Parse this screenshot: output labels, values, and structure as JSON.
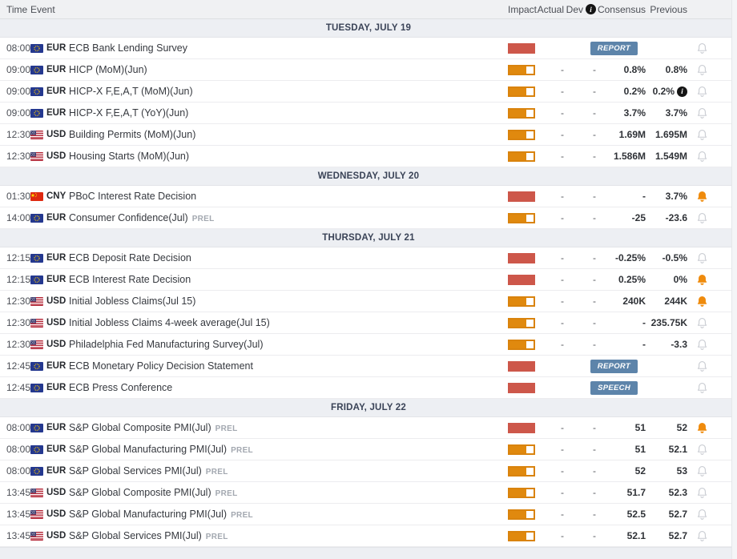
{
  "columns": {
    "time": "Time",
    "event": "Event",
    "impact": "Impact",
    "actual": "Actual",
    "dev": "Dev",
    "consensus": "Consensus",
    "previous": "Previous"
  },
  "labels": {
    "prel": "PREL",
    "info": "i"
  },
  "colors": {
    "impact_high": "#cd574a",
    "impact_medium": "#e0890e",
    "badge": "#5d84aa",
    "bell_active": "#ef8b0d",
    "bell_inactive": "#c9ccd2",
    "date_row_bg": "#edeff3",
    "header_bg": "#f0f1f3"
  },
  "sections": [
    {
      "date": "TUESDAY, JULY 19",
      "rows": [
        {
          "time": "08:00",
          "currency": "EUR",
          "flag": "eu",
          "event": "ECB Bank Lending Survey",
          "impact": "high",
          "actual": "",
          "dev": "",
          "consensus": "",
          "consensus_badge": "REPORT",
          "previous": "",
          "bell": "inactive"
        },
        {
          "time": "09:00",
          "currency": "EUR",
          "flag": "eu",
          "event": "HICP (MoM)(Jun)",
          "impact": "medium",
          "actual": "-",
          "dev": "-",
          "consensus": "0.8%",
          "previous": "0.8%",
          "bell": "inactive"
        },
        {
          "time": "09:00",
          "currency": "EUR",
          "flag": "eu",
          "event": "HICP-X F,E,A,T (MoM)(Jun)",
          "impact": "medium",
          "actual": "-",
          "dev": "-",
          "consensus": "0.2%",
          "previous": "0.2%",
          "previous_info": true,
          "bell": "inactive"
        },
        {
          "time": "09:00",
          "currency": "EUR",
          "flag": "eu",
          "event": "HICP-X F,E,A,T (YoY)(Jun)",
          "impact": "medium",
          "actual": "-",
          "dev": "-",
          "consensus": "3.7%",
          "previous": "3.7%",
          "bell": "inactive"
        },
        {
          "time": "12:30",
          "currency": "USD",
          "flag": "us",
          "event": "Building Permits (MoM)(Jun)",
          "impact": "medium",
          "actual": "-",
          "dev": "-",
          "consensus": "1.69M",
          "previous": "1.695M",
          "bell": "inactive"
        },
        {
          "time": "12:30",
          "currency": "USD",
          "flag": "us",
          "event": "Housing Starts (MoM)(Jun)",
          "impact": "medium",
          "actual": "-",
          "dev": "-",
          "consensus": "1.586M",
          "previous": "1.549M",
          "bell": "inactive"
        }
      ]
    },
    {
      "date": "WEDNESDAY, JULY 20",
      "rows": [
        {
          "time": "01:30",
          "currency": "CNY",
          "flag": "cn",
          "event": "PBoC Interest Rate Decision",
          "impact": "high",
          "actual": "-",
          "dev": "-",
          "consensus": "-",
          "previous": "3.7%",
          "bell": "active"
        },
        {
          "time": "14:00",
          "currency": "EUR",
          "flag": "eu",
          "event": "Consumer Confidence(Jul)",
          "prel": true,
          "impact": "medium",
          "actual": "-",
          "dev": "-",
          "consensus": "-25",
          "previous": "-23.6",
          "bell": "inactive"
        }
      ]
    },
    {
      "date": "THURSDAY, JULY 21",
      "rows": [
        {
          "time": "12:15",
          "currency": "EUR",
          "flag": "eu",
          "event": "ECB Deposit Rate Decision",
          "impact": "high",
          "actual": "-",
          "dev": "-",
          "consensus": "-0.25%",
          "previous": "-0.5%",
          "bell": "inactive"
        },
        {
          "time": "12:15",
          "currency": "EUR",
          "flag": "eu",
          "event": "ECB Interest Rate Decision",
          "impact": "high",
          "actual": "-",
          "dev": "-",
          "consensus": "0.25%",
          "previous": "0%",
          "bell": "active"
        },
        {
          "time": "12:30",
          "currency": "USD",
          "flag": "us",
          "event": "Initial Jobless Claims(Jul 15)",
          "impact": "medium",
          "actual": "-",
          "dev": "-",
          "consensus": "240K",
          "previous": "244K",
          "bell": "active"
        },
        {
          "time": "12:30",
          "currency": "USD",
          "flag": "us",
          "event": "Initial Jobless Claims 4-week average(Jul 15)",
          "impact": "medium",
          "actual": "-",
          "dev": "-",
          "consensus": "-",
          "previous": "235.75K",
          "bell": "inactive"
        },
        {
          "time": "12:30",
          "currency": "USD",
          "flag": "us",
          "event": "Philadelphia Fed Manufacturing Survey(Jul)",
          "impact": "medium",
          "actual": "-",
          "dev": "-",
          "consensus": "-",
          "previous": "-3.3",
          "bell": "inactive"
        },
        {
          "time": "12:45",
          "currency": "EUR",
          "flag": "eu",
          "event": "ECB Monetary Policy Decision Statement",
          "impact": "high",
          "actual": "",
          "dev": "",
          "consensus": "",
          "consensus_badge": "REPORT",
          "previous": "",
          "bell": "inactive"
        },
        {
          "time": "12:45",
          "currency": "EUR",
          "flag": "eu",
          "event": "ECB Press Conference",
          "impact": "high",
          "actual": "",
          "dev": "",
          "consensus": "",
          "consensus_badge": "SPEECH",
          "previous": "",
          "bell": "inactive"
        }
      ]
    },
    {
      "date": "FRIDAY, JULY 22",
      "rows": [
        {
          "time": "08:00",
          "currency": "EUR",
          "flag": "eu",
          "event": "S&P Global Composite PMI(Jul)",
          "prel": true,
          "impact": "high",
          "actual": "-",
          "dev": "-",
          "consensus": "51",
          "previous": "52",
          "bell": "active"
        },
        {
          "time": "08:00",
          "currency": "EUR",
          "flag": "eu",
          "event": "S&P Global Manufacturing PMI(Jul)",
          "prel": true,
          "impact": "medium",
          "actual": "-",
          "dev": "-",
          "consensus": "51",
          "previous": "52.1",
          "bell": "inactive"
        },
        {
          "time": "08:00",
          "currency": "EUR",
          "flag": "eu",
          "event": "S&P Global Services PMI(Jul)",
          "prel": true,
          "impact": "medium",
          "actual": "-",
          "dev": "-",
          "consensus": "52",
          "previous": "53",
          "bell": "inactive"
        },
        {
          "time": "13:45",
          "currency": "USD",
          "flag": "us",
          "event": "S&P Global Composite PMI(Jul)",
          "prel": true,
          "impact": "medium",
          "actual": "-",
          "dev": "-",
          "consensus": "51.7",
          "previous": "52.3",
          "bell": "inactive"
        },
        {
          "time": "13:45",
          "currency": "USD",
          "flag": "us",
          "event": "S&P Global Manufacturing PMI(Jul)",
          "prel": true,
          "impact": "medium",
          "actual": "-",
          "dev": "-",
          "consensus": "52.5",
          "previous": "52.7",
          "bell": "inactive"
        },
        {
          "time": "13:45",
          "currency": "USD",
          "flag": "us",
          "event": "S&P Global Services PMI(Jul)",
          "prel": true,
          "impact": "medium",
          "actual": "-",
          "dev": "-",
          "consensus": "52.1",
          "previous": "52.7",
          "bell": "inactive"
        }
      ]
    }
  ]
}
